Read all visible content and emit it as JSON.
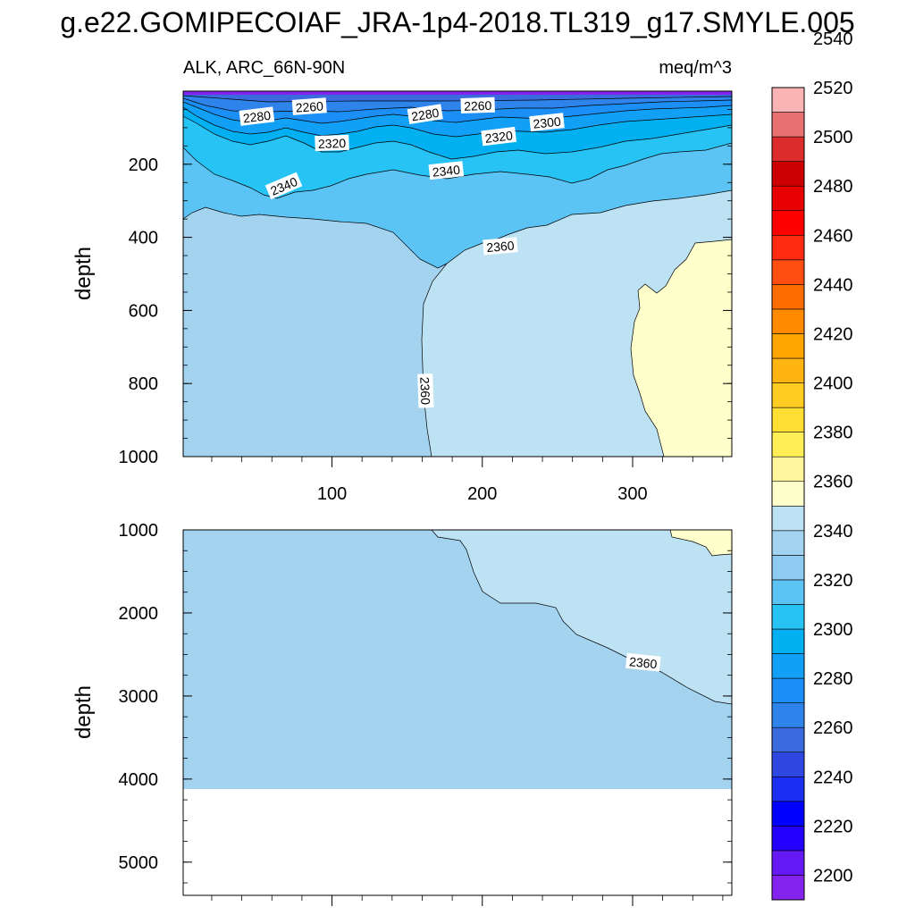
{
  "chart_data": {
    "type": "contour",
    "title": "g.e22.GOMIPECOIAF_JRA-1p4-2018.TL319_g17.SMYLE.005",
    "subtitle_left": "ALK, ARC_66N-90N",
    "subtitle_right": "meq/m^3",
    "xlim": [
      1,
      366
    ],
    "x_ticks": [
      100,
      200,
      300
    ],
    "panels": [
      {
        "ylabel": "depth",
        "ylim": [
          1000,
          0
        ],
        "y_ticks": [
          200,
          400,
          600,
          800,
          1000
        ],
        "contour_labels": [
          {
            "text": "2280",
            "x": 50,
            "y": 70,
            "rot": -7
          },
          {
            "text": "2260",
            "x": 85,
            "y": 43,
            "rot": -4
          },
          {
            "text": "2280",
            "x": 162,
            "y": 64,
            "rot": -9
          },
          {
            "text": "2260",
            "x": 197,
            "y": 40,
            "rot": -2
          },
          {
            "text": "2300",
            "x": 243,
            "y": 86,
            "rot": -6
          },
          {
            "text": "2320",
            "x": 100,
            "y": 143,
            "rot": -2
          },
          {
            "text": "2320",
            "x": 211,
            "y": 125,
            "rot": -7
          },
          {
            "text": "2340",
            "x": 68,
            "y": 260,
            "rot": -23
          },
          {
            "text": "2340",
            "x": 176,
            "y": 218,
            "rot": -6
          },
          {
            "text": "2360",
            "x": 212,
            "y": 425,
            "rot": -5
          },
          {
            "text": "2360",
            "x": 162,
            "y": 820,
            "rot": 88
          }
        ]
      },
      {
        "ylabel": "depth",
        "ylim": [
          5400,
          1000
        ],
        "y_ticks": [
          1000,
          2000,
          3000,
          4000,
          5000
        ],
        "seafloor_depth": 4120,
        "contour_labels": [
          {
            "text": "2360",
            "x": 307,
            "y": 2600,
            "rot": 6
          }
        ]
      }
    ],
    "colorbar": {
      "levels": [
        2200,
        2220,
        2240,
        2260,
        2280,
        2300,
        2320,
        2340,
        2360,
        2380,
        2400,
        2420,
        2440,
        2460,
        2480,
        2500,
        2520,
        2540
      ],
      "tick_labels": [
        "2200",
        "2220",
        "2240",
        "2260",
        "2280",
        "2300",
        "2320",
        "2340",
        "2360",
        "2380",
        "2400",
        "2420",
        "2440",
        "2460",
        "2480",
        "2500",
        "2520",
        "2540"
      ],
      "colors": [
        "#8423EE",
        "#6419F5",
        "#2300FF",
        "#0000FF",
        "#1A2FF2",
        "#2E47E0",
        "#3A6BDE",
        "#2F84EC",
        "#1B8FF5",
        "#12A0F6",
        "#00B0F0",
        "#27C3F5",
        "#5CC4F4",
        "#8ECBF0",
        "#A3D3EF",
        "#BDE2F3",
        "#FFFFCC",
        "#FFF59D",
        "#FFEE55",
        "#FFDE33",
        "#FFCC22",
        "#FFB511",
        "#FFA500",
        "#FF8A00",
        "#FF6D00",
        "#FF4E10",
        "#FF2A10",
        "#FF0000",
        "#E80000",
        "#CC0000",
        "#DC2C2C",
        "#E97070",
        "#FAB4B4"
      ]
    },
    "fill_colors": {
      "band_2360_2380": "#BDE2F3",
      "band_2380_2400": "#FFFFCC",
      "band_2340_2360": "#A3D3EF"
    }
  }
}
